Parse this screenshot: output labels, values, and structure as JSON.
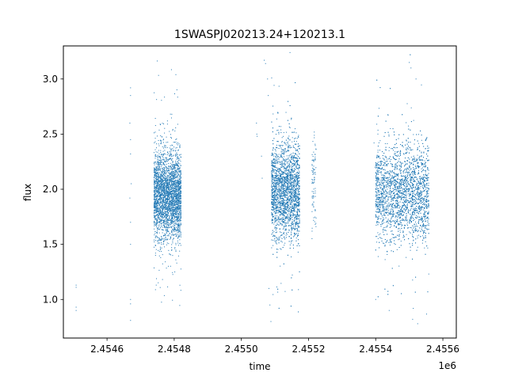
{
  "chart_data": {
    "type": "scatter",
    "title": "1SWASPJ020213.24+120213.1",
    "xlabel": "time",
    "ylabel": "flux",
    "x_offset_label": "1e6",
    "xlim": [
      2454470,
      2455640
    ],
    "ylim": [
      0.65,
      3.3
    ],
    "x_ticks": [
      2454600,
      2454800,
      2455000,
      2455200,
      2455400,
      2455600
    ],
    "x_tick_labels": [
      "2.4546",
      "2.4548",
      "2.4550",
      "2.4552",
      "2.4554",
      "2.4556"
    ],
    "y_ticks": [
      1.0,
      1.5,
      2.0,
      2.5,
      3.0
    ],
    "y_tick_labels": [
      "1.0",
      "1.5",
      "2.0",
      "2.5",
      "3.0"
    ],
    "grid": false,
    "marker_color": "#1f77b4",
    "series": [
      {
        "clusters": [
          {
            "x_range": [
              2454740,
              2454822
            ],
            "n": 3000,
            "center": 1.93,
            "spread": 0.2
          },
          {
            "x_range": [
              2455090,
              2455175
            ],
            "n": 3000,
            "center": 1.97,
            "spread": 0.22
          },
          {
            "x_range": [
              2455210,
              2455224
            ],
            "n": 90,
            "center": 2.05,
            "spread": 0.25
          },
          {
            "x_range": [
              2455400,
              2455560
            ],
            "n": 3300,
            "center": 1.95,
            "spread": 0.22
          }
        ],
        "sparse_points": [
          {
            "x": 2454508,
            "y": 1.13
          },
          {
            "x": 2454508,
            "y": 1.11
          },
          {
            "x": 2454508,
            "y": 0.93
          },
          {
            "x": 2454508,
            "y": 0.9
          },
          {
            "x": 2454670,
            "y": 2.92
          },
          {
            "x": 2454670,
            "y": 2.85
          },
          {
            "x": 2454668,
            "y": 2.6
          },
          {
            "x": 2454670,
            "y": 2.45
          },
          {
            "x": 2454670,
            "y": 2.32
          },
          {
            "x": 2454672,
            "y": 2.05
          },
          {
            "x": 2454668,
            "y": 1.92
          },
          {
            "x": 2454670,
            "y": 1.7
          },
          {
            "x": 2454670,
            "y": 1.5
          },
          {
            "x": 2454670,
            "y": 1.0
          },
          {
            "x": 2454670,
            "y": 0.96
          },
          {
            "x": 2454670,
            "y": 0.81
          },
          {
            "x": 2455045,
            "y": 2.6
          },
          {
            "x": 2455046,
            "y": 2.5
          },
          {
            "x": 2455047,
            "y": 2.48
          },
          {
            "x": 2455060,
            "y": 2.3
          },
          {
            "x": 2455062,
            "y": 2.1
          },
          {
            "x": 2455068,
            "y": 3.17
          },
          {
            "x": 2455072,
            "y": 3.14
          },
          {
            "x": 2455078,
            "y": 3.0
          },
          {
            "x": 2455080,
            "y": 2.85
          },
          {
            "x": 2455082,
            "y": 1.1
          },
          {
            "x": 2455085,
            "y": 0.95
          },
          {
            "x": 2455088,
            "y": 0.8
          },
          {
            "x": 2455395,
            "y": 2.42
          },
          {
            "x": 2455398,
            "y": 2.2
          },
          {
            "x": 2455400,
            "y": 1.0
          },
          {
            "x": 2455500,
            "y": 3.15
          },
          {
            "x": 2455505,
            "y": 3.1
          },
          {
            "x": 2455520,
            "y": 3.0
          },
          {
            "x": 2455510,
            "y": 0.82
          },
          {
            "x": 2455525,
            "y": 0.78
          }
        ]
      }
    ]
  }
}
